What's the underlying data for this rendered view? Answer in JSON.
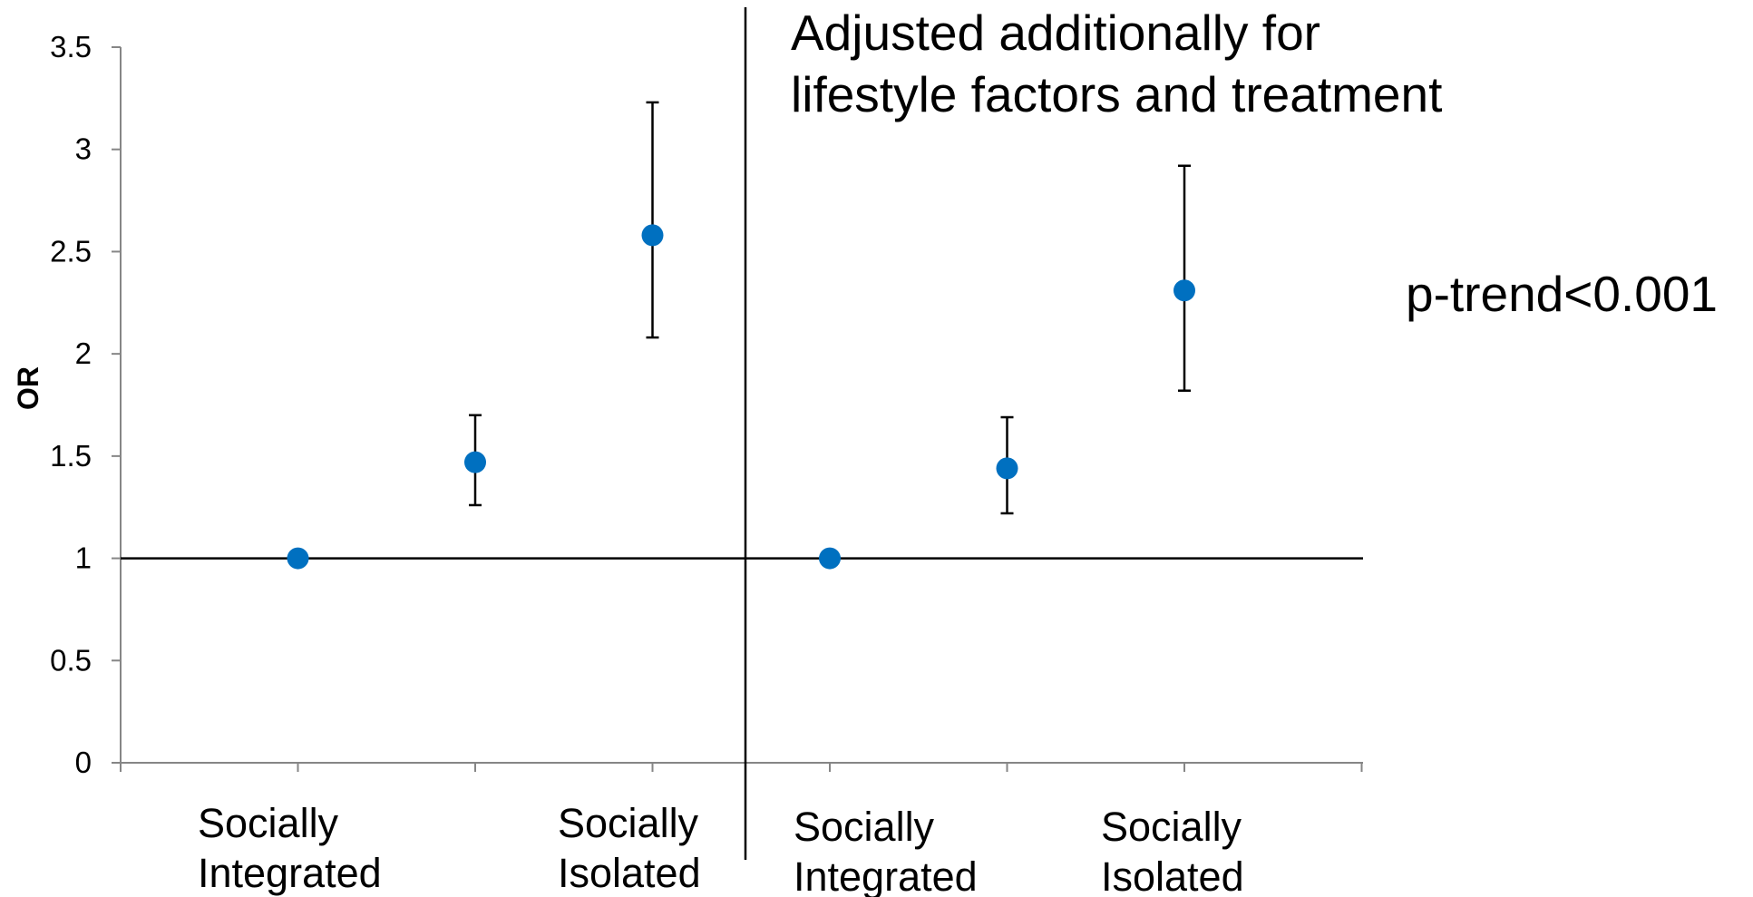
{
  "chart_data": {
    "type": "scatter",
    "ylabel": "OR",
    "ylim": [
      0,
      3.5
    ],
    "yticks": [
      "0",
      "0.5",
      "1",
      "1.5",
      "2",
      "2.5",
      "3",
      "3.5"
    ],
    "reference_line": 1,
    "color": "#0070C0",
    "panels": [
      {
        "title": "",
        "categories": [
          {
            "line1": "Socially",
            "line2": "Integrated"
          },
          {
            "line1": "",
            "line2": ""
          },
          {
            "line1": "Socially",
            "line2": "Isolated"
          }
        ],
        "points": [
          {
            "y": 1.0,
            "lower": null,
            "upper": null
          },
          {
            "y": 1.47,
            "lower": 1.26,
            "upper": 1.7
          },
          {
            "y": 2.58,
            "lower": 2.08,
            "upper": 3.23
          }
        ]
      },
      {
        "title": "Adjusted additionally for lifestyle factors and treatment",
        "title_line1": "Adjusted additionally for",
        "title_line2": "lifestyle factors and treatment",
        "categories": [
          {
            "line1": "Socially",
            "line2": "Integrated"
          },
          {
            "line1": "",
            "line2": ""
          },
          {
            "line1": "Socially",
            "line2": "Isolated"
          }
        ],
        "points": [
          {
            "y": 1.0,
            "lower": null,
            "upper": null
          },
          {
            "y": 1.44,
            "lower": 1.22,
            "upper": 1.69
          },
          {
            "y": 2.31,
            "lower": 1.82,
            "upper": 2.92
          }
        ]
      }
    ],
    "annotation": "p-trend<0.001"
  }
}
